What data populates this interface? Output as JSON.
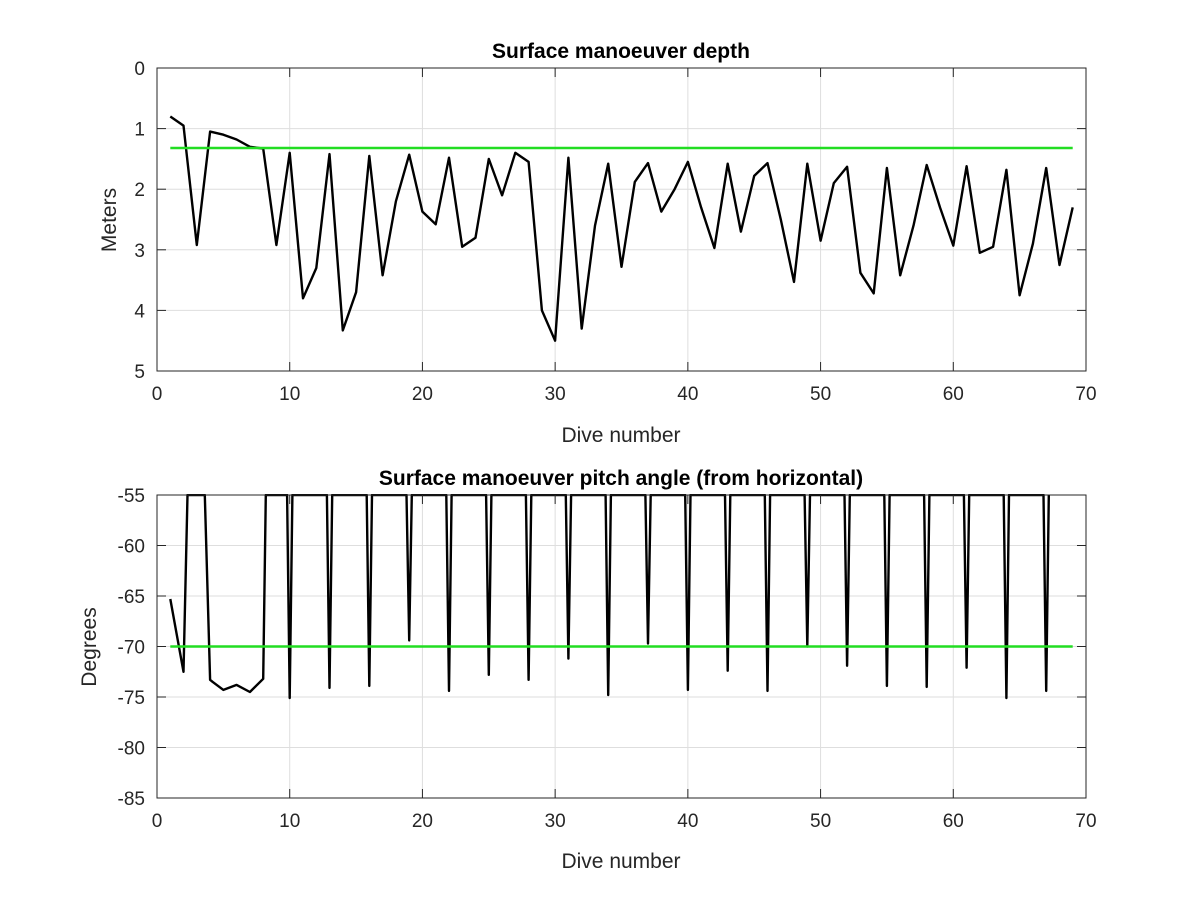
{
  "chart_data": [
    {
      "type": "line",
      "title": "Surface manoeuver depth",
      "xlabel": "Dive number",
      "ylabel": "Meters",
      "xlim": [
        0,
        70
      ],
      "ylim": [
        0,
        5
      ],
      "y_reversed": true,
      "grid": true,
      "xticks": [
        "0",
        "10",
        "20",
        "30",
        "40",
        "50",
        "60",
        "70"
      ],
      "yticks": [
        "0",
        "1",
        "2",
        "3",
        "4",
        "5"
      ],
      "colors": {
        "data": "#000000",
        "reference": "#22dd22"
      },
      "series": [
        {
          "x": [
            1,
            2,
            3,
            4,
            5,
            6,
            7,
            8,
            9,
            10,
            11,
            12,
            13,
            14,
            15,
            16,
            17,
            18,
            19,
            20,
            21,
            22,
            23,
            24,
            25,
            26,
            27,
            28,
            29,
            30,
            31,
            32,
            33,
            34,
            35,
            36,
            37,
            38,
            39,
            40,
            41,
            42,
            43,
            44,
            45,
            46,
            47,
            48,
            49,
            50,
            51,
            52,
            53,
            54,
            55,
            56,
            57,
            58,
            59,
            60,
            61,
            62,
            63,
            64,
            65,
            66,
            67,
            68,
            69
          ],
          "values": [
            0.8,
            0.95,
            2.92,
            1.05,
            1.1,
            1.18,
            1.3,
            1.33,
            2.92,
            1.4,
            3.8,
            3.3,
            1.42,
            4.33,
            3.7,
            1.45,
            3.42,
            2.2,
            1.43,
            2.37,
            2.58,
            1.48,
            2.95,
            2.8,
            1.5,
            2.1,
            1.4,
            1.55,
            4.0,
            4.5,
            1.48,
            4.3,
            2.6,
            1.58,
            3.28,
            1.88,
            1.57,
            2.37,
            2.0,
            1.55,
            2.3,
            2.97,
            1.58,
            2.7,
            1.78,
            1.57,
            2.5,
            3.53,
            1.58,
            2.85,
            1.9,
            1.63,
            3.38,
            3.72,
            1.65,
            3.42,
            2.6,
            1.6,
            2.3,
            2.93,
            1.62,
            3.05,
            2.95,
            1.68,
            3.75,
            2.9,
            1.65,
            3.25,
            2.3
          ]
        },
        {
          "x": [
            1,
            69
          ],
          "values": [
            1.32,
            1.32
          ]
        }
      ]
    },
    {
      "type": "line",
      "title": "Surface manoeuver pitch angle (from horizontal)",
      "xlabel": "Dive number",
      "ylabel": "Degrees",
      "xlim": [
        0,
        70
      ],
      "ylim": [
        -85,
        -55
      ],
      "grid": true,
      "xticks": [
        "0",
        "10",
        "20",
        "30",
        "40",
        "50",
        "60",
        "70"
      ],
      "yticks": [
        "-55",
        "-60",
        "-65",
        "-70",
        "-75",
        "-80",
        "-85"
      ],
      "colors": {
        "data": "#000000",
        "reference": "#22dd22"
      },
      "series": [
        {
          "x": [
            1,
            2,
            2.3,
            2.6,
            3.6,
            4,
            4.2,
            5,
            6,
            7,
            8,
            8.2,
            8.5,
            9.8,
            10,
            10.2,
            12.8,
            13,
            13.2,
            15.8,
            16,
            16.2,
            18.8,
            19,
            19.2,
            21.8,
            22,
            22.2,
            24.8,
            25,
            25.2,
            27.8,
            28,
            28.2,
            30.8,
            31,
            31.2,
            33.8,
            34,
            34.2,
            36.8,
            37,
            37.2,
            39.8,
            40,
            40.2,
            42.8,
            43,
            43.2,
            45.8,
            46,
            46.2,
            48.8,
            49,
            49.2,
            51.8,
            52,
            52.2,
            54.8,
            55,
            55.2,
            57.8,
            58,
            58.2,
            60.8,
            61,
            61.2,
            63.8,
            64,
            64.2,
            66.8,
            67,
            67.2
          ],
          "values": [
            -65.3,
            -72.5,
            -55,
            -55,
            -55,
            -73.3,
            -73.5,
            -74.3,
            -73.8,
            -74.5,
            -73.2,
            -55,
            -55,
            -55,
            -75.1,
            -55,
            -55,
            -74.1,
            -55,
            -55,
            -73.9,
            -55,
            -55,
            -69.4,
            -55,
            -55,
            -74.4,
            -55,
            -55,
            -72.8,
            -55,
            -55,
            -73.3,
            -55,
            -55,
            -71.2,
            -55,
            -55,
            -74.8,
            -55,
            -55,
            -69.7,
            -55,
            -55,
            -74.3,
            -55,
            -55,
            -72.4,
            -55,
            -55,
            -74.4,
            -55,
            -55,
            -70.0,
            -55,
            -55,
            -71.9,
            -55,
            -55,
            -73.9,
            -55,
            -55,
            -74.0,
            -55,
            -55,
            -72.1,
            -55,
            -55,
            -75.1,
            -55,
            -55,
            -74.4,
            -55
          ]
        },
        {
          "x": [
            1,
            69
          ],
          "values": [
            -70,
            -70
          ]
        }
      ]
    }
  ]
}
